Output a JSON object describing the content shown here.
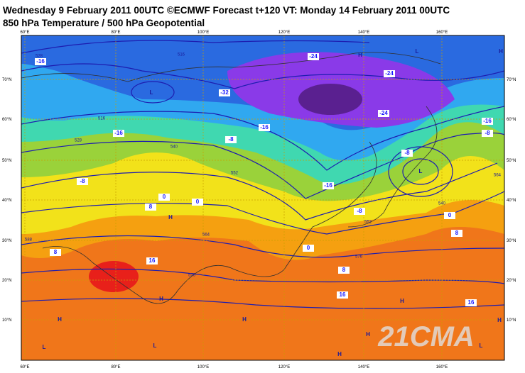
{
  "header": {
    "line1": "Wednesday 9 February 2011 00UTC ©ECMWF Forecast t+120 VT: Monday 14 February 2011 00UTC",
    "line2": "850 hPa Temperature / 500 hPa Geopotential"
  },
  "longitudes": [
    "60°E",
    "80°E",
    "100°E",
    "120°E",
    "140°E",
    "160°E"
  ],
  "latitudes": [
    "70°N",
    "60°N",
    "50°N",
    "40°N",
    "30°N",
    "20°N",
    "10°N"
  ],
  "temperature_labels": [
    "-16",
    "-24",
    "-24",
    "-32",
    "-24",
    "-16",
    "-16",
    "-8",
    "-16",
    "-8",
    "-8",
    "-8",
    "-16",
    "-8",
    "0",
    "8",
    "0",
    "0",
    "8",
    "16",
    "0",
    "8",
    "8",
    "16",
    "16"
  ],
  "geopotential_labels": [
    "528",
    "516",
    "516",
    "528",
    "540",
    "552",
    "564",
    "576",
    "588",
    "540",
    "552",
    "564",
    "576"
  ],
  "pressure_centers": [
    "L",
    "H",
    "L",
    "H",
    "L",
    "H",
    "H",
    "H",
    "L",
    "H",
    "H",
    "H",
    "H",
    "H",
    "L",
    "L"
  ],
  "watermark": "21CMA"
}
